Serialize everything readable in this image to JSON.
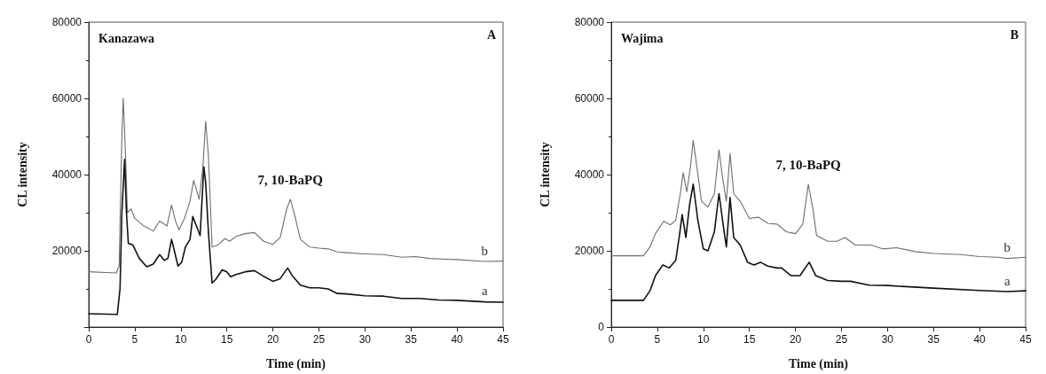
{
  "chart_data": [
    {
      "type": "line",
      "title": "Kanazawa",
      "xlabel": "Time (min)",
      "ylabel": "CL intensity",
      "annotations": [
        "A",
        {
          "text": "7, 10-BaPQ",
          "x": 21.9,
          "y": 33500
        }
      ],
      "xlim": [
        0,
        45
      ],
      "xticks": [
        0,
        5,
        10,
        15,
        20,
        25,
        30,
        35,
        40,
        45
      ],
      "ylim": [
        0,
        80000
      ],
      "yticks": [
        {
          "value": 0,
          "label": null
        },
        20000,
        40000,
        60000,
        80000
      ],
      "grid": false,
      "legend": false,
      "marker": "none",
      "line_style": "solid",
      "series": [
        {
          "name": "b",
          "color": "#6e6e6e",
          "x": [
            0,
            3.0,
            3.3,
            3.6,
            3.75,
            4.0,
            4.2,
            4.6,
            5.0,
            6.0,
            7.0,
            7.7,
            8.5,
            9.0,
            9.4,
            9.8,
            10.4,
            11.0,
            11.4,
            12.0,
            12.4,
            12.7,
            13.0,
            13.4,
            14.0,
            14.8,
            15.3,
            16,
            17,
            18,
            19,
            20,
            20.8,
            21.5,
            21.9,
            22.3,
            23,
            24,
            25,
            26,
            27,
            28,
            30,
            32,
            34,
            35.5,
            37,
            40,
            43,
            45
          ],
          "values": [
            14500,
            14200,
            16000,
            50000,
            60000,
            45000,
            30000,
            31000,
            28500,
            26500,
            25200,
            27800,
            26500,
            32000,
            28000,
            25500,
            28500,
            33000,
            38500,
            33500,
            42000,
            54000,
            45000,
            21000,
            21500,
            23200,
            22500,
            23800,
            24500,
            24800,
            22500,
            21700,
            23500,
            31000,
            33500,
            30000,
            23000,
            21000,
            20700,
            20500,
            19700,
            19500,
            19200,
            19000,
            18300,
            18500,
            18000,
            17700,
            17200,
            17300
          ]
        },
        {
          "name": "a",
          "color": "#111111",
          "x": [
            0,
            3.1,
            3.4,
            3.6,
            3.9,
            4.1,
            4.3,
            4.8,
            5.5,
            6.3,
            7.0,
            7.7,
            8.2,
            8.6,
            9.0,
            9.3,
            9.7,
            10.1,
            10.5,
            11.0,
            11.3,
            11.7,
            12.1,
            12.5,
            12.7,
            13.0,
            13.4,
            13.8,
            14.5,
            15.0,
            15.4,
            16,
            17,
            18,
            19,
            20,
            20.8,
            21.6,
            22.1,
            23,
            24,
            25,
            26,
            27,
            28,
            30,
            32,
            34,
            36,
            38,
            40,
            43,
            45
          ],
          "values": [
            3500,
            3300,
            10000,
            30000,
            44000,
            30000,
            22000,
            21500,
            18000,
            15800,
            16500,
            19000,
            17500,
            18000,
            23000,
            20000,
            16000,
            17000,
            21000,
            23000,
            29000,
            26500,
            24000,
            42000,
            38000,
            25000,
            11500,
            12500,
            15000,
            14500,
            13200,
            13800,
            14500,
            14800,
            13300,
            12000,
            12700,
            15500,
            13500,
            11000,
            10300,
            10300,
            10000,
            8800,
            8700,
            8200,
            8100,
            7500,
            7500,
            7100,
            7000,
            6600,
            6500
          ]
        }
      ]
    },
    {
      "type": "line",
      "title": "Wajima",
      "xlabel": "Time (min)",
      "ylabel": "CL intensity",
      "annotations": [
        "B",
        {
          "text": "7, 10-BaPQ",
          "x": 21.4,
          "y": 37500
        }
      ],
      "xlim": [
        0,
        45
      ],
      "xticks": [
        0,
        5,
        10,
        15,
        20,
        25,
        30,
        35,
        40,
        45
      ],
      "ylim": [
        0,
        80000
      ],
      "yticks": [
        0,
        20000,
        40000,
        60000,
        80000
      ],
      "grid": false,
      "legend": false,
      "marker": "none",
      "line_style": "solid",
      "series": [
        {
          "name": "b",
          "color": "#6e6e6e",
          "x": [
            0,
            3.5,
            4.2,
            4.8,
            5.7,
            6.4,
            7.0,
            7.5,
            7.8,
            8.2,
            8.6,
            8.9,
            9.3,
            9.8,
            10.5,
            11.2,
            11.7,
            12.1,
            12.5,
            12.9,
            13.3,
            14,
            15,
            16,
            17,
            18,
            19,
            20,
            20.8,
            21.4,
            21.9,
            22.3,
            23.5,
            24.5,
            25.4,
            26.5,
            28.2,
            29.5,
            31,
            33,
            35,
            38,
            40,
            42,
            43,
            45
          ],
          "values": [
            18700,
            18700,
            21000,
            24500,
            27800,
            26800,
            28000,
            35000,
            40500,
            35500,
            42000,
            49000,
            42000,
            33000,
            31500,
            35000,
            46500,
            39000,
            33000,
            45500,
            35000,
            33000,
            28500,
            28800,
            27200,
            27000,
            25000,
            24500,
            27000,
            37500,
            31000,
            24000,
            22500,
            22500,
            23500,
            21500,
            21500,
            20500,
            20800,
            19800,
            19300,
            19000,
            18500,
            18300,
            18000,
            18300
          ]
        },
        {
          "name": "a",
          "color": "#111111",
          "x": [
            0,
            3.5,
            4.2,
            4.8,
            5.6,
            6.3,
            7.0,
            7.4,
            7.7,
            8.1,
            8.5,
            8.9,
            9.4,
            10,
            10.5,
            11.2,
            11.7,
            12.2,
            12.5,
            12.9,
            13.3,
            14,
            14.8,
            15.5,
            16.2,
            17,
            18,
            18.5,
            19.5,
            20.5,
            21.5,
            22.2,
            23.5,
            25,
            26,
            28,
            30,
            32,
            35,
            40,
            43,
            45
          ],
          "values": [
            7000,
            7000,
            9500,
            13500,
            16300,
            15500,
            17500,
            24000,
            29500,
            23500,
            32000,
            37500,
            28000,
            20500,
            20000,
            25000,
            35000,
            26000,
            21000,
            34000,
            23500,
            21500,
            17000,
            16300,
            17000,
            16000,
            15500,
            15500,
            13500,
            13500,
            17000,
            13500,
            12200,
            12000,
            12000,
            11000,
            10900,
            10600,
            10200,
            9600,
            9300,
            9500
          ]
        }
      ]
    }
  ]
}
